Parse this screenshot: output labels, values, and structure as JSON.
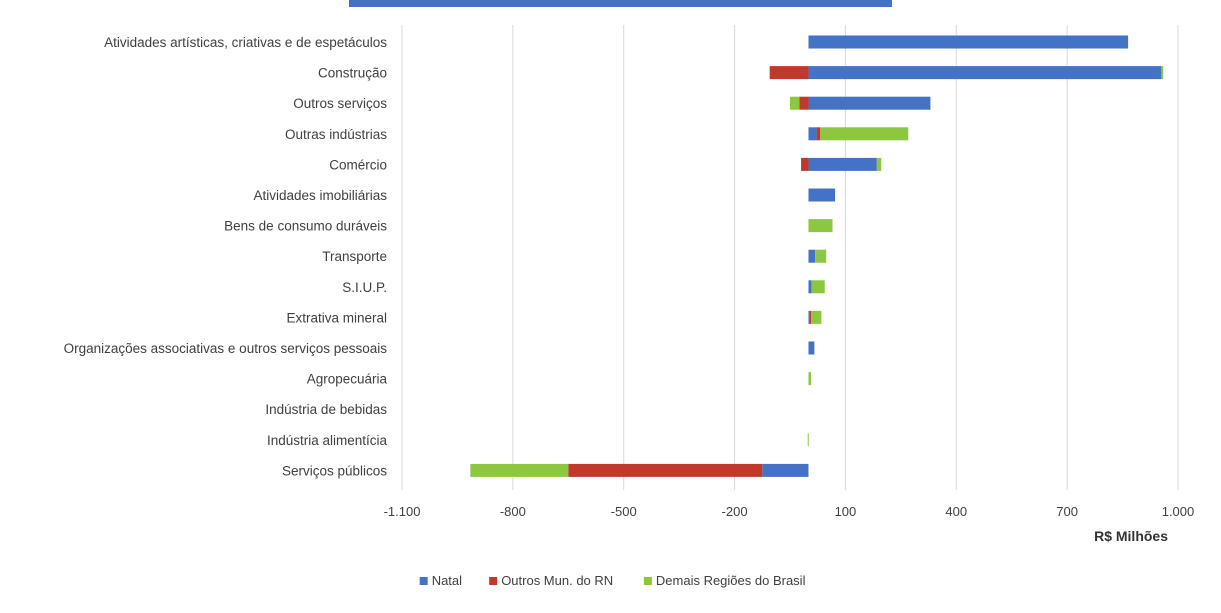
{
  "chart_data": {
    "type": "bar",
    "orientation": "horizontal",
    "stacked": true,
    "title": "",
    "xlabel": "R$ Milhões",
    "ylabel": "",
    "xlim": [
      -1100,
      1000
    ],
    "xticks": [
      -1100,
      -800,
      -500,
      -200,
      100,
      400,
      700,
      1000
    ],
    "xtick_labels": [
      "-1.100",
      "-800",
      "-500",
      "-200",
      "100",
      "400",
      "700",
      "1.000"
    ],
    "grid": "vertical",
    "legend_position": "bottom",
    "categories": [
      "Atividades artísticas, criativas e de espetáculos",
      "Construção",
      "Outros serviços",
      "Outras indústrias",
      "Comércio",
      "Atividades imobiliárias",
      "Bens de consumo duráveis",
      "Transporte",
      "S.I.U.P.",
      "Extrativa mineral",
      "Organizações associativas e outros serviços pessoais",
      "Agropecuária",
      "Indústria de bebidas",
      "Indústria alimentícia",
      "Serviços públicos"
    ],
    "series": [
      {
        "name": "Natal",
        "color": "#4472C4",
        "values": [
          865,
          955,
          330,
          22,
          185,
          72,
          0,
          18,
          8,
          4,
          16,
          0,
          0,
          0,
          -125
        ]
      },
      {
        "name": "Outros Mun. do RN",
        "color": "#C0392B",
        "values": [
          0,
          -105,
          -25,
          10,
          -20,
          0,
          0,
          0,
          0,
          3,
          0,
          0,
          0,
          0,
          -525
        ]
      },
      {
        "name": "Demais Regiões do Brasil",
        "color": "#8DC63F",
        "values": [
          0,
          5,
          -25,
          238,
          12,
          0,
          65,
          30,
          36,
          28,
          0,
          7,
          0,
          -2,
          -265
        ]
      }
    ]
  },
  "colors": {
    "top_banner": "#4472C4",
    "grid": "#D9D9D9",
    "text": "#404040"
  }
}
